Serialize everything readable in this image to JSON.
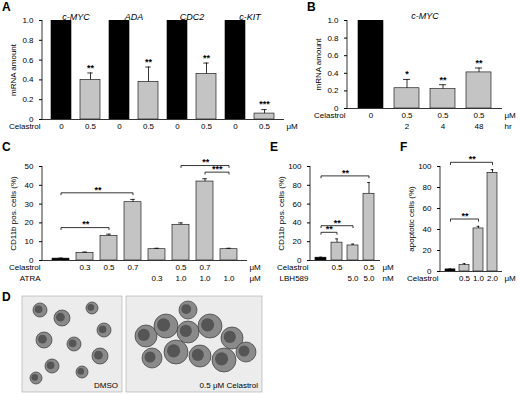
{
  "chart_data": [
    {
      "panel": "A",
      "type": "bar",
      "y_label": "mRNA amount",
      "ylim": [
        0,
        1
      ],
      "yticks": [
        0,
        0.2,
        0.4,
        0.6,
        0.8,
        {
          "value": 1,
          "label": "1.0"
        }
      ],
      "values": [
        1,
        0.4,
        1,
        0.38,
        1,
        0.46,
        1,
        0.06
      ],
      "errors": [
        null,
        0.07,
        null,
        0.15,
        null,
        0.11,
        null,
        0.04
      ],
      "colors": [
        "#000000",
        "#c4c4c4",
        "#000000",
        "#c4c4c4",
        "#000000",
        "#c4c4c4",
        "#000000",
        "#c4c4c4"
      ],
      "significance": [
        null,
        "**",
        null,
        "**",
        null,
        "**",
        null,
        "***"
      ],
      "groups": [
        {
          "label": "c-MYC",
          "bars": [
            0,
            1
          ]
        },
        {
          "label": "ADA",
          "bars": [
            2,
            3
          ]
        },
        {
          "label": "CDC2",
          "bars": [
            4,
            5
          ]
        },
        {
          "label": "c-KIT",
          "bars": [
            6,
            7
          ]
        }
      ],
      "conditions": [
        {
          "name": "Celastrol",
          "unit": "μM",
          "labels": [
            "0",
            "0.5",
            "0",
            "0.5",
            "0",
            "0.5",
            "0",
            "0.5"
          ]
        }
      ]
    },
    {
      "panel": "B",
      "type": "bar",
      "title": "c-MYC",
      "y_label": "mRNA amount",
      "ylim": [
        0,
        1
      ],
      "yticks": [
        0,
        0.2,
        0.4,
        0.6,
        0.8,
        {
          "value": 1,
          "label": "1.0"
        }
      ],
      "values": [
        1,
        0.23,
        0.22,
        0.41
      ],
      "errors": [
        null,
        0.1,
        0.05,
        0.05
      ],
      "colors": [
        "#000000",
        "#c4c4c4",
        "#c4c4c4",
        "#c4c4c4"
      ],
      "significance": [
        null,
        "*",
        "**",
        "**"
      ],
      "conditions": [
        {
          "name": "Celastrol",
          "unit": "μM",
          "labels": [
            "0",
            "0.5",
            "0.5",
            "0.5"
          ]
        },
        {
          "name": null,
          "unit": "hr",
          "labels": [
            null,
            "2",
            "4",
            "48"
          ]
        }
      ]
    },
    {
      "panel": "C",
      "type": "bar",
      "y_label": "CD11b pos. cells (%)",
      "ylim": [
        0,
        50
      ],
      "yticks": [
        0,
        10,
        20,
        30,
        40,
        50
      ],
      "values": [
        1,
        4,
        13,
        31,
        6,
        19,
        42,
        6
      ],
      "errors": [
        0.3,
        0.5,
        1,
        1.5,
        0.5,
        1,
        1.5,
        0.5
      ],
      "colors": [
        "#000000",
        "#c4c4c4",
        "#c4c4c4",
        "#c4c4c4",
        "#c4c4c4",
        "#c4c4c4",
        "#c4c4c4",
        "#c4c4c4"
      ],
      "brackets": [
        {
          "from": 0,
          "to": 2,
          "label": "**"
        },
        {
          "from": 0,
          "to": 3,
          "label": "**"
        },
        {
          "from": 6,
          "to": 7,
          "label": "***"
        },
        {
          "from": 5,
          "to": 7,
          "label": "**"
        }
      ],
      "conditions": [
        {
          "name": "Celastrol",
          "unit": "μM",
          "labels": [
            null,
            "0.3",
            "0.5",
            "0.7",
            null,
            "0.5",
            "0.7",
            null
          ]
        },
        {
          "name": "ATRA",
          "unit": "μM",
          "labels": [
            null,
            null,
            null,
            null,
            "0.3",
            "1.0",
            "1.0",
            "1.0"
          ]
        }
      ]
    },
    {
      "panel": "D",
      "type": "image",
      "labels": [
        "DMSO",
        "0.5 μM Celastrol"
      ]
    },
    {
      "panel": "E",
      "type": "bar",
      "y_label": "CD11b pos. cells (%)",
      "ylim": [
        0,
        100
      ],
      "yticks": [
        0,
        20,
        40,
        60,
        80,
        100
      ],
      "values": [
        3,
        19,
        16,
        71
      ],
      "errors": [
        0.5,
        4,
        1.5,
        12
      ],
      "colors": [
        "#000000",
        "#c4c4c4",
        "#c4c4c4",
        "#c4c4c4"
      ],
      "brackets": [
        {
          "from": 0,
          "to": 1,
          "label": "**"
        },
        {
          "from": 0,
          "to": 2,
          "label": "**"
        },
        {
          "from": 0,
          "to": 3,
          "label": "**"
        }
      ],
      "conditions": [
        {
          "name": "Celastrol",
          "unit": "μM",
          "labels": [
            null,
            "0.5",
            null,
            "0.5"
          ]
        },
        {
          "name": "LBH589",
          "unit": "nM",
          "labels": [
            null,
            null,
            "5.0",
            "5.0"
          ]
        }
      ]
    },
    {
      "panel": "F",
      "type": "bar",
      "y_label": "apoptotic cells (%)",
      "ylim": [
        0,
        100
      ],
      "yticks": [
        0,
        20,
        40,
        60,
        80,
        100
      ],
      "values": [
        2,
        6,
        41,
        94
      ],
      "errors": [
        0.5,
        1.5,
        2,
        3
      ],
      "colors": [
        "#000000",
        "#c4c4c4",
        "#c4c4c4",
        "#c4c4c4"
      ],
      "brackets": [
        {
          "from": 0,
          "to": 2,
          "label": "**"
        },
        {
          "from": 0,
          "to": 3,
          "label": "**"
        }
      ],
      "conditions": [
        {
          "name": "Celastrol",
          "unit": "μM",
          "labels": [
            null,
            "0.5",
            "1.0",
            "2.0"
          ]
        }
      ]
    }
  ]
}
